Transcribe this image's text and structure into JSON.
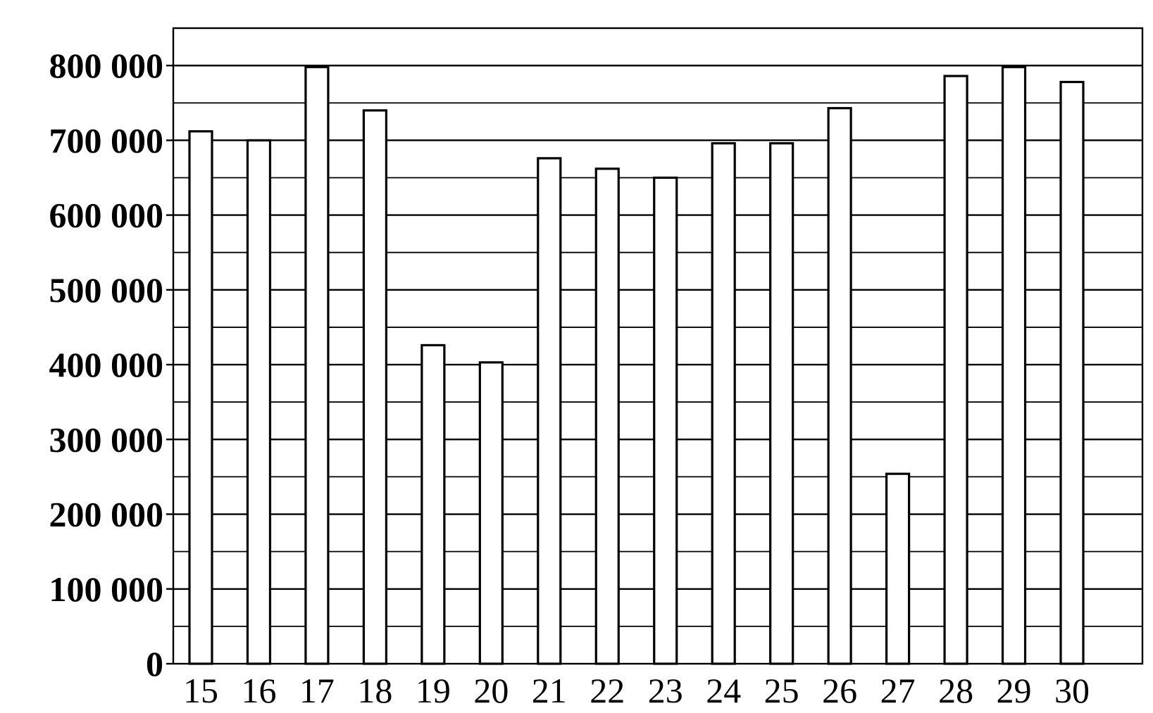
{
  "chart_data": {
    "type": "bar",
    "title": "",
    "xlabel": "",
    "ylabel": "",
    "categories": [
      "15",
      "16",
      "17",
      "18",
      "19",
      "20",
      "21",
      "22",
      "23",
      "24",
      "25",
      "26",
      "27",
      "28",
      "29",
      "30"
    ],
    "values": [
      712000,
      700000,
      798000,
      740000,
      426000,
      403000,
      676000,
      662000,
      650000,
      696000,
      696000,
      743000,
      254000,
      786000,
      798000,
      778000
    ],
    "ylim": [
      0,
      850000
    ],
    "yticks": [
      0,
      100000,
      200000,
      300000,
      400000,
      500000,
      600000,
      700000,
      800000
    ],
    "ytick_labels": [
      "0",
      "100 000",
      "200 000",
      "300 000",
      "400 000",
      "500 000",
      "600 000",
      "700 000",
      "800 000"
    ],
    "minor_grid_step": 50000,
    "grid": true,
    "legend": "none",
    "colors": {
      "bar_fill": "#ffffff",
      "bar_stroke": "#000000",
      "grid": "#000000"
    }
  }
}
